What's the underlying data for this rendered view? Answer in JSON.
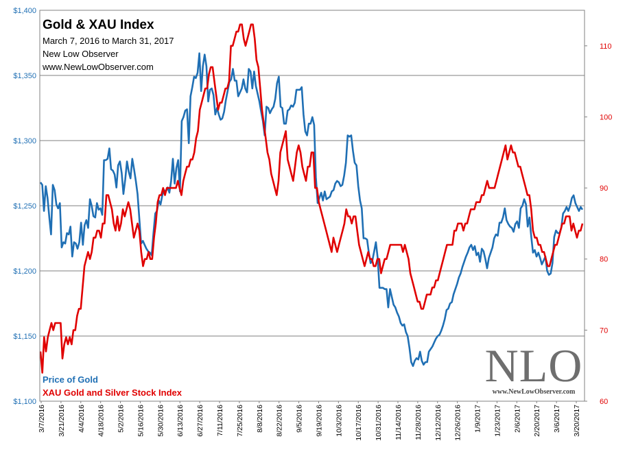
{
  "chart_data": {
    "type": "line",
    "title": "Gold & XAU Index",
    "subtitle": "March 7, 2016 to March 31, 2017",
    "source": "New Low Observer",
    "website": "www.NewLowObserver.com",
    "logo_text": "NLO",
    "logo_url": "www.NewLowObserver.com",
    "left_axis": {
      "ylim": [
        1100,
        1400
      ],
      "ticks": [
        1100,
        1150,
        1200,
        1250,
        1300,
        1350,
        1400
      ],
      "tick_labels": [
        "$1,100",
        "$1,150",
        "$1,200",
        "$1,250",
        "$1,300",
        "$1,350",
        "$1,400"
      ]
    },
    "right_axis": {
      "ylim": [
        60,
        115
      ],
      "ticks": [
        60,
        70,
        80,
        90,
        100,
        110
      ],
      "tick_labels": [
        "60",
        "70",
        "80",
        "90",
        "100",
        "110"
      ]
    },
    "x_tick_labels": [
      "3/7/2016",
      "3/21/2016",
      "4/4/2016",
      "4/18/2016",
      "5/2/2016",
      "5/16/2016",
      "5/30/2016",
      "6/13/2016",
      "6/27/2016",
      "7/11/2016",
      "7/25/2016",
      "8/8/2016",
      "8/22/2016",
      "9/5/2016",
      "9/19/2016",
      "10/3/2016",
      "10/17/2016",
      "10/31/2016",
      "11/14/2016",
      "11/28/2016",
      "12/12/2016",
      "12/26/2016",
      "1/9/2017",
      "1/23/2017",
      "2/6/2017",
      "2/20/2017",
      "3/6/2017",
      "3/20/2017"
    ],
    "series": [
      {
        "name": "Price of Gold",
        "axis": "left",
        "color": "#1f6fb4",
        "values": [
          1268,
          1266,
          1246,
          1265,
          1256,
          1241,
          1228,
          1266,
          1262,
          1251,
          1248,
          1252,
          1218,
          1222,
          1221,
          1229,
          1228,
          1234,
          1211,
          1222,
          1221,
          1217,
          1222,
          1237,
          1220,
          1235,
          1239,
          1233,
          1255,
          1250,
          1242,
          1241,
          1252,
          1247,
          1248,
          1243,
          1285,
          1285,
          1286,
          1294,
          1278,
          1277,
          1274,
          1264,
          1281,
          1284,
          1275,
          1259,
          1270,
          1284,
          1276,
          1271,
          1286,
          1278,
          1269,
          1259,
          1240,
          1221,
          1223,
          1220,
          1217,
          1215,
          1214,
          1212,
          1229,
          1244,
          1246,
          1254,
          1251,
          1258,
          1262,
          1261,
          1264,
          1260,
          1269,
          1286,
          1267,
          1279,
          1285,
          1261,
          1315,
          1318,
          1323,
          1324,
          1298,
          1334,
          1341,
          1349,
          1348,
          1352,
          1367,
          1338,
          1357,
          1366,
          1357,
          1330,
          1339,
          1340,
          1335,
          1320,
          1325,
          1320,
          1316,
          1317,
          1322,
          1331,
          1338,
          1345,
          1347,
          1355,
          1346,
          1346,
          1334,
          1337,
          1340,
          1347,
          1340,
          1337,
          1355,
          1353,
          1340,
          1353,
          1342,
          1336,
          1330,
          1322,
          1315,
          1304,
          1326,
          1325,
          1321,
          1324,
          1326,
          1332,
          1344,
          1349,
          1326,
          1325,
          1313,
          1313,
          1323,
          1324,
          1327,
          1326,
          1329,
          1339,
          1339,
          1339,
          1341,
          1320,
          1307,
          1304,
          1313,
          1313,
          1318,
          1312,
          1272,
          1252,
          1256,
          1260,
          1254,
          1261,
          1255,
          1256,
          1257,
          1261,
          1262,
          1267,
          1269,
          1268,
          1265,
          1266,
          1273,
          1283,
          1304,
          1303,
          1304,
          1292,
          1283,
          1281,
          1265,
          1254,
          1248,
          1225,
          1225,
          1224,
          1214,
          1206,
          1208,
          1215,
          1222,
          1210,
          1187,
          1187,
          1187,
          1186,
          1186,
          1172,
          1186,
          1180,
          1174,
          1172,
          1168,
          1165,
          1160,
          1158,
          1159,
          1153,
          1150,
          1141,
          1130,
          1127,
          1131,
          1133,
          1132,
          1138,
          1131,
          1128,
          1130,
          1130,
          1138,
          1140,
          1142,
          1145,
          1148,
          1150,
          1151,
          1154,
          1158,
          1163,
          1170,
          1171,
          1175,
          1176,
          1182,
          1186,
          1190,
          1195,
          1198,
          1203,
          1207,
          1211,
          1214,
          1218,
          1220,
          1216,
          1219,
          1212,
          1214,
          1207,
          1217,
          1215,
          1209,
          1202,
          1210,
          1214,
          1218,
          1225,
          1228,
          1227,
          1237,
          1237,
          1241,
          1248,
          1239,
          1236,
          1234,
          1233,
          1230,
          1236,
          1238,
          1233,
          1248,
          1250,
          1255,
          1251,
          1234,
          1241,
          1226,
          1214,
          1216,
          1211,
          1214,
          1210,
          1205,
          1208,
          1211,
          1200,
          1197,
          1198,
          1206,
          1226,
          1231,
          1229,
          1229,
          1233,
          1244,
          1246,
          1249,
          1246,
          1250,
          1256,
          1258,
          1252,
          1249,
          1246,
          1249,
          1247
        ]
      },
      {
        "name": "XAU Gold and Silver Stock Index",
        "axis": "right",
        "color": "#e00000",
        "values": [
          67,
          64,
          69,
          67,
          69,
          70,
          71,
          70,
          71,
          71,
          71,
          71,
          66,
          68,
          69,
          68,
          69,
          68,
          70,
          70,
          72,
          73,
          73,
          76,
          79,
          80,
          81,
          80,
          81,
          83,
          83,
          84,
          84,
          83,
          85,
          85,
          89,
          89,
          88,
          87,
          85,
          84,
          86,
          84,
          85,
          87,
          86,
          87,
          88,
          87,
          85,
          83,
          84,
          85,
          84,
          81,
          79,
          80,
          80,
          81,
          80,
          80,
          83,
          85,
          88,
          89,
          89,
          90,
          89,
          90,
          90,
          90,
          90,
          90,
          90,
          91,
          90,
          89,
          91,
          92,
          93,
          93,
          94,
          94,
          95,
          97,
          98,
          101,
          102,
          103,
          104,
          104,
          106,
          107,
          107,
          105,
          103,
          101,
          102,
          102,
          103,
          104,
          104,
          105,
          110,
          110,
          111,
          112,
          112,
          113,
          113,
          111,
          110,
          111,
          112,
          113,
          113,
          111,
          108,
          107,
          104,
          101,
          99,
          97,
          95,
          94,
          92,
          91,
          90,
          89,
          91,
          95,
          96,
          97,
          98,
          94,
          93,
          92,
          91,
          93,
          95,
          96,
          95,
          93,
          92,
          91,
          93,
          93,
          95,
          95,
          90,
          90,
          88,
          87,
          86,
          85,
          84,
          83,
          82,
          81,
          83,
          82,
          81,
          82,
          83,
          84,
          85,
          87,
          86,
          86,
          85,
          86,
          86,
          84,
          82,
          81,
          80,
          79,
          80,
          81,
          80,
          80,
          79,
          79,
          80,
          80,
          78,
          79,
          80,
          80,
          81,
          82,
          82,
          82,
          82,
          82,
          82,
          82,
          81,
          82,
          81,
          80,
          78,
          77,
          76,
          75,
          74,
          74,
          73,
          73,
          74,
          75,
          75,
          75,
          76,
          76,
          77,
          77,
          78,
          79,
          80,
          81,
          82,
          82,
          82,
          82,
          84,
          84,
          85,
          85,
          85,
          84,
          85,
          85,
          86,
          87,
          87,
          87,
          88,
          88,
          88,
          89,
          89,
          90,
          91,
          90,
          90,
          90,
          90,
          91,
          92,
          93,
          94,
          95,
          96,
          94,
          95,
          96,
          95,
          95,
          94,
          93,
          93,
          92,
          91,
          90,
          89,
          89,
          87,
          84,
          83,
          83,
          82,
          82,
          81,
          81,
          80,
          79,
          79,
          80,
          81,
          82,
          82,
          83,
          84,
          85,
          85,
          86,
          86,
          86,
          84,
          85,
          84,
          83,
          84,
          84,
          85
        ]
      }
    ]
  }
}
